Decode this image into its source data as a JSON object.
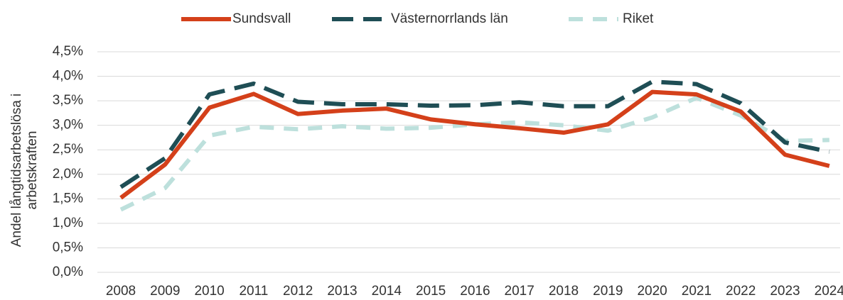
{
  "chart_data": {
    "type": "line",
    "y_label": [
      "Andel långtidsarbetslösa i",
      "arbetskraften"
    ],
    "categories": [
      "2008",
      "2009",
      "2010",
      "2011",
      "2012",
      "2013",
      "2014",
      "2015",
      "2016",
      "2017",
      "2018",
      "2019",
      "2020",
      "2021",
      "2022",
      "2023",
      "2024"
    ],
    "series": [
      {
        "name": "Sundsvall",
        "color": "#d4401a",
        "dash": "solid",
        "values": [
          1.52,
          2.2,
          3.36,
          3.64,
          3.23,
          3.3,
          3.34,
          3.12,
          3.02,
          2.94,
          2.85,
          3.02,
          3.68,
          3.63,
          3.28,
          2.4,
          2.17
        ]
      },
      {
        "name": "Västernorrlands län",
        "color": "#1f4e55",
        "dash": "long-dash",
        "values": [
          1.74,
          2.33,
          3.63,
          3.85,
          3.48,
          3.43,
          3.43,
          3.4,
          3.41,
          3.47,
          3.39,
          3.39,
          3.89,
          3.84,
          3.45,
          2.65,
          2.46
        ]
      },
      {
        "name": "Riket",
        "color": "#bde0dc",
        "dash": "dash",
        "values": [
          1.28,
          1.72,
          2.79,
          2.97,
          2.92,
          2.98,
          2.93,
          2.95,
          3.02,
          3.06,
          3.0,
          2.89,
          3.16,
          3.56,
          3.2,
          2.68,
          2.7
        ]
      }
    ],
    "ylim": [
      0,
      4.5
    ],
    "yticks": [
      {
        "value": 0,
        "label": "0,0%"
      },
      {
        "value": 0.5,
        "label": "0,5%"
      },
      {
        "value": 1,
        "label": "1,0%"
      },
      {
        "value": 1.5,
        "label": "1,5%"
      },
      {
        "value": 2,
        "label": "2,0%"
      },
      {
        "value": 2.5,
        "label": "2,5%"
      },
      {
        "value": 3,
        "label": "3,0%"
      },
      {
        "value": 3.5,
        "label": "3,5%"
      },
      {
        "value": 4,
        "label": "4,0%"
      },
      {
        "value": 4.5,
        "label": "4,5%"
      }
    ],
    "grid": true,
    "legend": "top"
  }
}
